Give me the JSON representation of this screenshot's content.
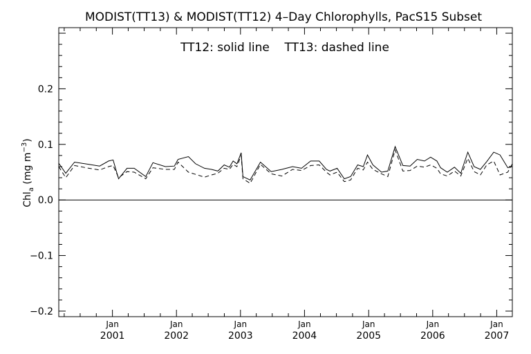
{
  "chart_data": {
    "type": "line",
    "title": "MODIST(TT13) & MODIST(TT12) 4–Day Chlorophylls, PacS15 Subset",
    "annotation": "TT12: solid line    TT13: dashed line",
    "ylabel": {
      "main": "Chl",
      "subscript": "a",
      "unit_open": " (mg m",
      "unit_sup": "−3",
      "unit_close": ")"
    },
    "xlabel": "",
    "ylim": [
      -0.21,
      0.31
    ],
    "yticks": [
      -0.2,
      -0.1,
      0.0,
      0.1,
      0.2
    ],
    "ytick_labels": [
      "−0.2",
      "−0.1",
      "0.0",
      "0.1",
      "0.2"
    ],
    "xlim": [
      "2000-03-01",
      "2007-03-31"
    ],
    "xticks": [
      {
        "date": "2001-01-01",
        "month": "Jan",
        "year": "2001"
      },
      {
        "date": "2002-01-01",
        "month": "Jan",
        "year": "2002"
      },
      {
        "date": "2003-01-01",
        "month": "Jan",
        "year": "2003"
      },
      {
        "date": "2004-01-01",
        "month": "Jan",
        "year": "2004"
      },
      {
        "date": "2005-01-01",
        "month": "Jan",
        "year": "2005"
      },
      {
        "date": "2006-01-01",
        "month": "Jan",
        "year": "2006"
      },
      {
        "date": "2007-01-01",
        "month": "Jan",
        "year": "2007"
      }
    ],
    "zero_line": 0.0,
    "x": [
      "2000-03-01",
      "2000-04-10",
      "2000-05-30",
      "2000-08-20",
      "2000-10-20",
      "2000-12-10",
      "2001-01-05",
      "2001-02-05",
      "2001-03-25",
      "2001-05-05",
      "2001-07-10",
      "2001-08-20",
      "2001-10-30",
      "2001-12-20",
      "2002-01-10",
      "2002-03-10",
      "2002-04-20",
      "2002-06-10",
      "2002-07-20",
      "2002-08-25",
      "2002-09-30",
      "2002-10-30",
      "2002-11-20",
      "2002-12-12",
      "2003-01-05",
      "2003-01-15",
      "2003-02-25",
      "2003-04-25",
      "2003-06-25",
      "2003-08-25",
      "2003-10-25",
      "2003-12-15",
      "2004-02-05",
      "2004-03-25",
      "2004-05-05",
      "2004-05-25",
      "2004-07-05",
      "2004-08-15",
      "2004-09-20",
      "2004-10-30",
      "2004-12-01",
      "2004-12-25",
      "2005-01-25",
      "2005-03-15",
      "2005-04-20",
      "2005-06-01",
      "2005-07-15",
      "2005-08-25",
      "2005-10-05",
      "2005-11-15",
      "2005-12-20",
      "2006-01-25",
      "2006-02-15",
      "2006-03-25",
      "2006-05-05",
      "2006-06-10",
      "2006-07-20",
      "2006-08-25",
      "2006-09-30",
      "2006-11-05",
      "2006-12-15",
      "2007-01-20",
      "2007-03-05",
      "2007-03-31"
    ],
    "series": [
      {
        "name": "TT12",
        "style": "solid",
        "values": [
          0.066,
          0.048,
          0.068,
          0.064,
          0.061,
          0.07,
          0.072,
          0.038,
          0.057,
          0.057,
          0.042,
          0.067,
          0.06,
          0.061,
          0.073,
          0.078,
          0.065,
          0.057,
          0.055,
          0.052,
          0.063,
          0.059,
          0.07,
          0.065,
          0.085,
          0.042,
          0.036,
          0.068,
          0.051,
          0.055,
          0.06,
          0.057,
          0.07,
          0.07,
          0.055,
          0.052,
          0.057,
          0.038,
          0.042,
          0.063,
          0.06,
          0.081,
          0.063,
          0.05,
          0.052,
          0.096,
          0.062,
          0.061,
          0.073,
          0.07,
          0.077,
          0.07,
          0.058,
          0.05,
          0.059,
          0.048,
          0.086,
          0.06,
          0.055,
          0.069,
          0.086,
          0.081,
          0.058,
          0.06
        ]
      },
      {
        "name": "TT13",
        "style": "dashed",
        "values": [
          0.06,
          0.04,
          0.062,
          0.057,
          0.054,
          0.06,
          0.062,
          0.04,
          0.051,
          0.05,
          0.038,
          0.058,
          0.055,
          0.055,
          0.068,
          0.05,
          0.046,
          0.041,
          0.045,
          0.048,
          0.057,
          0.055,
          0.064,
          0.06,
          0.08,
          0.038,
          0.03,
          0.064,
          0.047,
          0.043,
          0.055,
          0.053,
          0.062,
          0.063,
          0.05,
          0.045,
          0.05,
          0.033,
          0.036,
          0.057,
          0.054,
          0.068,
          0.055,
          0.047,
          0.042,
          0.09,
          0.052,
          0.053,
          0.061,
          0.059,
          0.063,
          0.057,
          0.047,
          0.043,
          0.052,
          0.043,
          0.075,
          0.051,
          0.045,
          0.063,
          0.07,
          0.045,
          0.05,
          0.065
        ]
      }
    ],
    "grid": false,
    "legend": "none"
  }
}
